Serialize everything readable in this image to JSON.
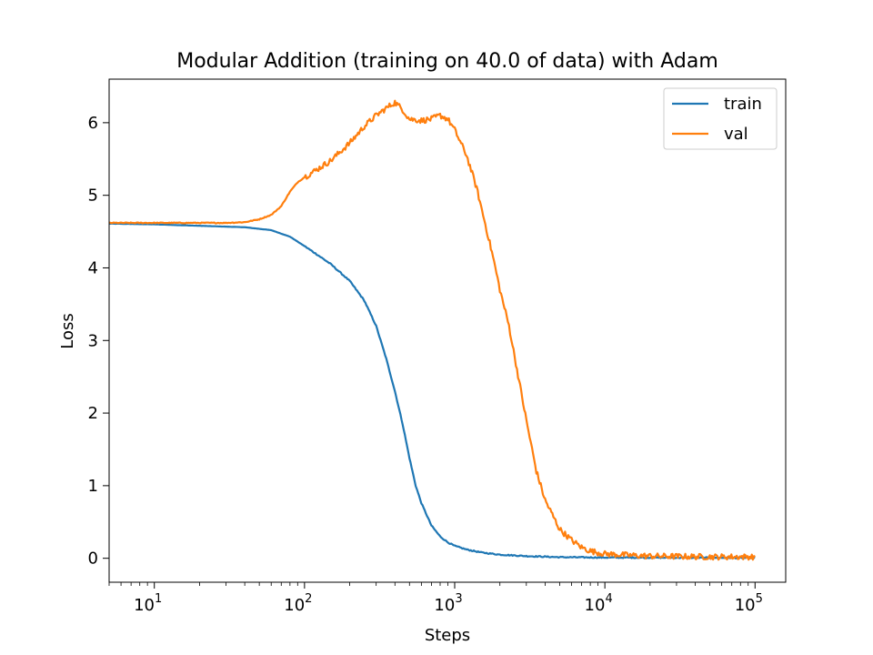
{
  "chart_data": {
    "type": "line",
    "title": "Modular Addition (training on 40.0 of data) with Adam",
    "xlabel": "Steps",
    "ylabel": "Loss",
    "xscale": "log",
    "xlim": [
      5,
      160000
    ],
    "ylim": [
      -0.33,
      6.6
    ],
    "x_ticks": [
      {
        "value": 10,
        "base": "10",
        "exp": "1"
      },
      {
        "value": 100,
        "base": "10",
        "exp": "2"
      },
      {
        "value": 1000,
        "base": "10",
        "exp": "3"
      },
      {
        "value": 10000,
        "base": "10",
        "exp": "4"
      },
      {
        "value": 100000,
        "base": "10",
        "exp": "5"
      }
    ],
    "y_ticks": [
      0,
      1,
      2,
      3,
      4,
      5,
      6
    ],
    "grid": false,
    "legend": "top-right",
    "series": [
      {
        "name": "train",
        "color": "#1f77b4",
        "noise": 0.008,
        "points": [
          [
            5,
            4.61
          ],
          [
            10,
            4.6
          ],
          [
            20,
            4.58
          ],
          [
            40,
            4.56
          ],
          [
            60,
            4.52
          ],
          [
            80,
            4.43
          ],
          [
            100,
            4.3
          ],
          [
            120,
            4.19
          ],
          [
            150,
            4.05
          ],
          [
            200,
            3.82
          ],
          [
            250,
            3.55
          ],
          [
            300,
            3.2
          ],
          [
            350,
            2.75
          ],
          [
            400,
            2.3
          ],
          [
            450,
            1.85
          ],
          [
            500,
            1.38
          ],
          [
            550,
            1.0
          ],
          [
            600,
            0.76
          ],
          [
            700,
            0.45
          ],
          [
            800,
            0.3
          ],
          [
            900,
            0.22
          ],
          [
            1000,
            0.17
          ],
          [
            1200,
            0.12
          ],
          [
            1500,
            0.08
          ],
          [
            2000,
            0.05
          ],
          [
            3000,
            0.03
          ],
          [
            5000,
            0.015
          ],
          [
            10000,
            0.01
          ],
          [
            100000,
            0.005
          ]
        ]
      },
      {
        "name": "val",
        "color": "#ff7f0e",
        "noise": 0.04,
        "points": [
          [
            5,
            4.62
          ],
          [
            10,
            4.62
          ],
          [
            20,
            4.62
          ],
          [
            30,
            4.62
          ],
          [
            40,
            4.63
          ],
          [
            50,
            4.67
          ],
          [
            60,
            4.73
          ],
          [
            70,
            4.85
          ],
          [
            80,
            5.05
          ],
          [
            90,
            5.18
          ],
          [
            100,
            5.25
          ],
          [
            120,
            5.35
          ],
          [
            150,
            5.48
          ],
          [
            200,
            5.72
          ],
          [
            250,
            5.95
          ],
          [
            300,
            6.1
          ],
          [
            350,
            6.2
          ],
          [
            400,
            6.28
          ],
          [
            450,
            6.18
          ],
          [
            500,
            6.05
          ],
          [
            600,
            6.03
          ],
          [
            700,
            6.05
          ],
          [
            800,
            6.1
          ],
          [
            900,
            6.05
          ],
          [
            1000,
            5.9
          ],
          [
            1200,
            5.55
          ],
          [
            1400,
            5.1
          ],
          [
            1600,
            4.6
          ],
          [
            1800,
            4.15
          ],
          [
            2000,
            3.7
          ],
          [
            2300,
            3.2
          ],
          [
            2600,
            2.6
          ],
          [
            3000,
            1.9
          ],
          [
            3500,
            1.2
          ],
          [
            4000,
            0.8
          ],
          [
            5000,
            0.4
          ],
          [
            6000,
            0.25
          ],
          [
            7000,
            0.15
          ],
          [
            8000,
            0.1
          ],
          [
            10000,
            0.06
          ],
          [
            15000,
            0.04
          ],
          [
            20000,
            0.03
          ],
          [
            50000,
            0.02
          ],
          [
            100000,
            0.02
          ]
        ]
      }
    ]
  }
}
